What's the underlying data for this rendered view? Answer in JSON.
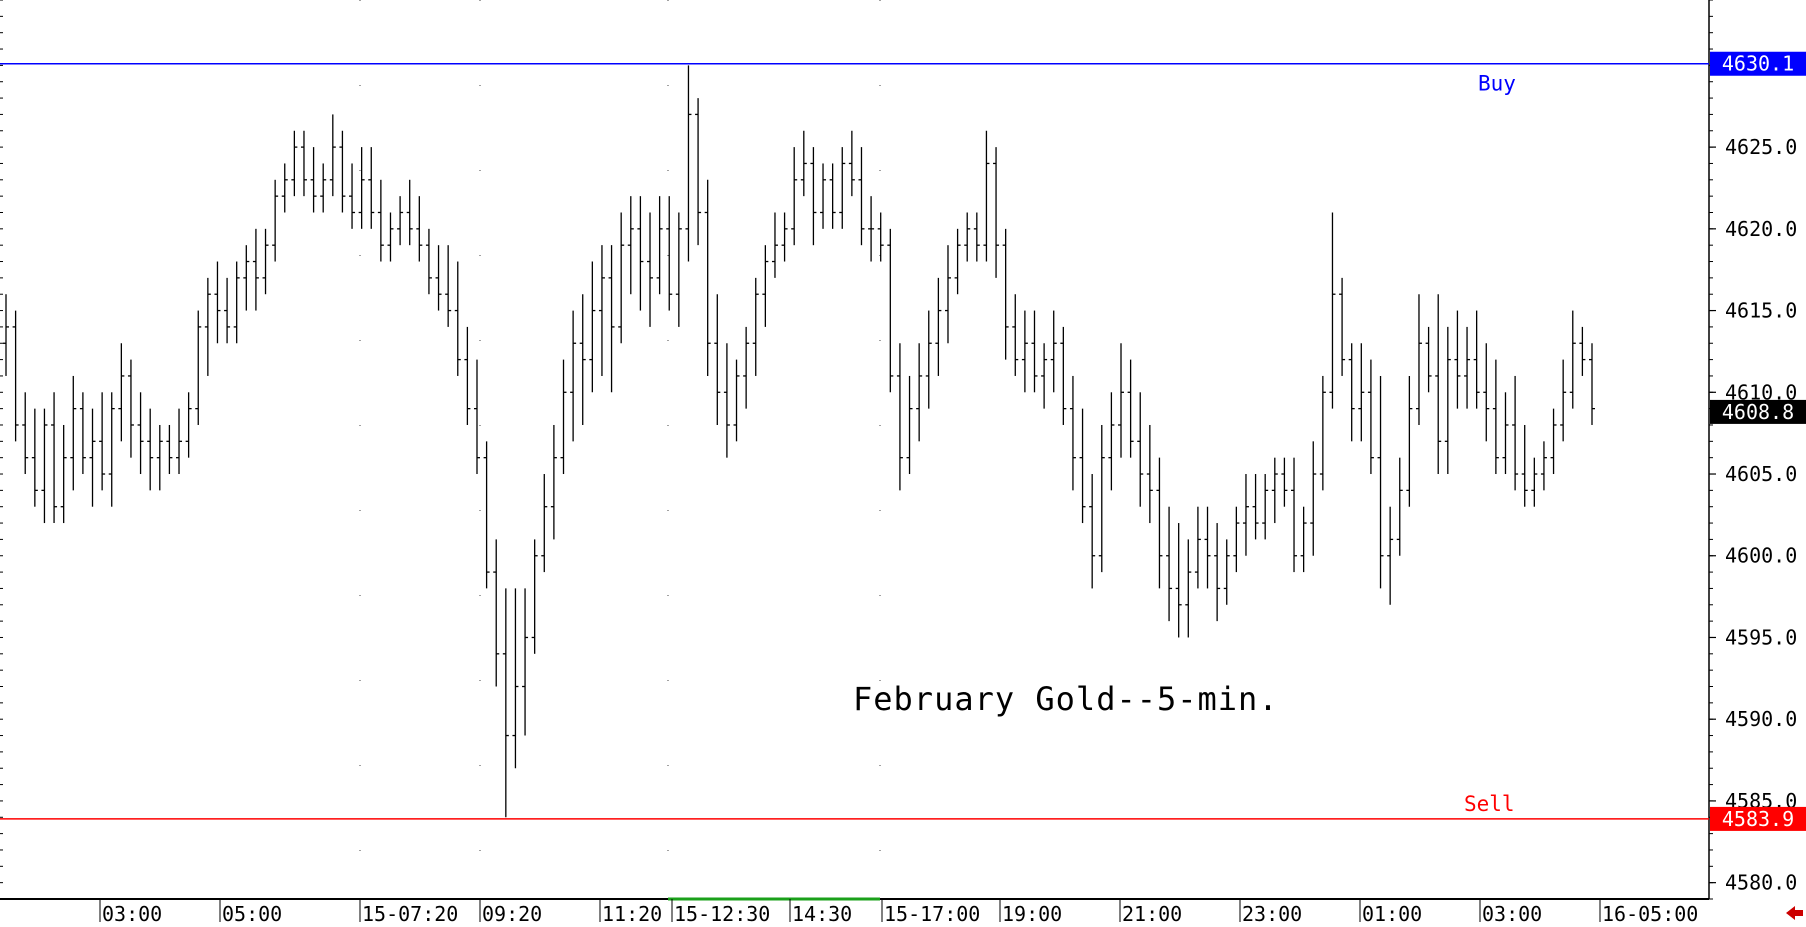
{
  "chart_data": {
    "type": "ohlc",
    "title": "February Gold--5-min.",
    "ylim": [
      4579,
      4634
    ],
    "y_ticks": [
      4580.0,
      4585.0,
      4590.0,
      4595.0,
      4600.0,
      4605.0,
      4610.0,
      4615.0,
      4620.0,
      4625.0
    ],
    "y_tick_labels": [
      "4580.0",
      "4585.0",
      "4590.0",
      "4595.0",
      "4600.0",
      "4605.0",
      "4610.0",
      "4615.0",
      "4620.0",
      "4625.0"
    ],
    "x_labels": [
      "03:00",
      "05:00",
      "15-07:20",
      "09:20",
      "11:20",
      "15-12:30",
      "14:30",
      "15-17:00",
      "19:00",
      "21:00",
      "23:00",
      "01:00",
      "03:00",
      "16-05:00"
    ],
    "buy_level": {
      "label": "Buy",
      "value": 4630.1,
      "value_label": "4630.1",
      "color": "#0000ff"
    },
    "sell_level": {
      "label": "Sell",
      "value": 4583.9,
      "value_label": "4583.9",
      "color": "#ff0000"
    },
    "last_price": {
      "value": 4608.8,
      "value_label": "4608.8",
      "color": "#000000"
    },
    "bar_color": "#000000",
    "grid": "dotted vertical separators",
    "ohlc": [
      [
        4613,
        4616,
        4611,
        4614
      ],
      [
        4614,
        4615,
        4607,
        4608
      ],
      [
        4608,
        4610,
        4605,
        4606
      ],
      [
        4606,
        4609,
        4603,
        4604
      ],
      [
        4604,
        4609,
        4602,
        4608
      ],
      [
        4608,
        4610,
        4602,
        4603
      ],
      [
        4603,
        4608,
        4602,
        4606
      ],
      [
        4606,
        4611,
        4604,
        4609
      ],
      [
        4609,
        4610,
        4605,
        4606
      ],
      [
        4606,
        4609,
        4603,
        4607
      ],
      [
        4607,
        4610,
        4604,
        4605
      ],
      [
        4605,
        4610,
        4603,
        4609
      ],
      [
        4609,
        4613,
        4607,
        4611
      ],
      [
        4611,
        4612,
        4606,
        4608
      ],
      [
        4608,
        4610,
        4605,
        4607
      ],
      [
        4607,
        4609,
        4604,
        4606
      ],
      [
        4606,
        4608,
        4604,
        4607
      ],
      [
        4607,
        4608,
        4605,
        4606
      ],
      [
        4606,
        4609,
        4605,
        4607
      ],
      [
        4607,
        4610,
        4606,
        4609
      ],
      [
        4609,
        4615,
        4608,
        4614
      ],
      [
        4614,
        4617,
        4611,
        4616
      ],
      [
        4616,
        4618,
        4613,
        4615
      ],
      [
        4615,
        4617,
        4613,
        4614
      ],
      [
        4614,
        4618,
        4613,
        4617
      ],
      [
        4617,
        4619,
        4615,
        4618
      ],
      [
        4618,
        4620,
        4615,
        4617
      ],
      [
        4617,
        4620,
        4616,
        4619
      ],
      [
        4619,
        4623,
        4618,
        4622
      ],
      [
        4622,
        4624,
        4621,
        4623
      ],
      [
        4623,
        4626,
        4622,
        4625
      ],
      [
        4625,
        4626,
        4622,
        4623
      ],
      [
        4623,
        4625,
        4621,
        4622
      ],
      [
        4622,
        4624,
        4621,
        4623
      ],
      [
        4623,
        4627,
        4622,
        4625
      ],
      [
        4625,
        4626,
        4621,
        4622
      ],
      [
        4622,
        4624,
        4620,
        4621
      ],
      [
        4621,
        4625,
        4620,
        4623
      ],
      [
        4623,
        4625,
        4620,
        4621
      ],
      [
        4621,
        4623,
        4618,
        4619
      ],
      [
        4619,
        4621,
        4618,
        4620
      ],
      [
        4620,
        4622,
        4619,
        4621
      ],
      [
        4621,
        4623,
        4619,
        4620
      ],
      [
        4620,
        4622,
        4618,
        4619
      ],
      [
        4619,
        4620,
        4616,
        4617
      ],
      [
        4617,
        4619,
        4615,
        4616
      ],
      [
        4616,
        4619,
        4614,
        4615
      ],
      [
        4615,
        4618,
        4611,
        4612
      ],
      [
        4612,
        4614,
        4608,
        4609
      ],
      [
        4609,
        4612,
        4605,
        4606
      ],
      [
        4606,
        4607,
        4598,
        4599
      ],
      [
        4599,
        4601,
        4592,
        4594
      ],
      [
        4594,
        4598,
        4584,
        4589
      ],
      [
        4589,
        4598,
        4587,
        4592
      ],
      [
        4592,
        4598,
        4589,
        4595
      ],
      [
        4595,
        4601,
        4594,
        4600
      ],
      [
        4600,
        4605,
        4599,
        4603
      ],
      [
        4603,
        4608,
        4601,
        4606
      ],
      [
        4606,
        4612,
        4605,
        4610
      ],
      [
        4610,
        4615,
        4607,
        4613
      ],
      [
        4613,
        4616,
        4608,
        4612
      ],
      [
        4612,
        4618,
        4610,
        4615
      ],
      [
        4615,
        4619,
        4611,
        4617
      ],
      [
        4617,
        4619,
        4610,
        4614
      ],
      [
        4614,
        4621,
        4613,
        4619
      ],
      [
        4619,
        4622,
        4616,
        4620
      ],
      [
        4620,
        4622,
        4615,
        4618
      ],
      [
        4618,
        4621,
        4614,
        4617
      ],
      [
        4617,
        4622,
        4616,
        4620
      ],
      [
        4620,
        4622,
        4615,
        4616
      ],
      [
        4616,
        4621,
        4614,
        4620
      ],
      [
        4620,
        4630,
        4618,
        4627
      ],
      [
        4627,
        4628,
        4619,
        4621
      ],
      [
        4621,
        4623,
        4611,
        4613
      ],
      [
        4613,
        4616,
        4608,
        4610
      ],
      [
        4610,
        4613,
        4606,
        4608
      ],
      [
        4608,
        4612,
        4607,
        4611
      ],
      [
        4611,
        4614,
        4609,
        4613
      ],
      [
        4613,
        4617,
        4611,
        4616
      ],
      [
        4616,
        4619,
        4614,
        4618
      ],
      [
        4618,
        4621,
        4617,
        4619
      ],
      [
        4619,
        4621,
        4618,
        4620
      ],
      [
        4620,
        4625,
        4619,
        4623
      ],
      [
        4623,
        4626,
        4622,
        4624
      ],
      [
        4624,
        4625,
        4619,
        4621
      ],
      [
        4621,
        4624,
        4620,
        4623
      ],
      [
        4623,
        4624,
        4620,
        4621
      ],
      [
        4621,
        4625,
        4620,
        4624
      ],
      [
        4624,
        4626,
        4622,
        4623
      ],
      [
        4623,
        4625,
        4619,
        4620
      ],
      [
        4620,
        4622,
        4618,
        4620
      ],
      [
        4620,
        4621,
        4618,
        4619
      ],
      [
        4619,
        4620,
        4610,
        4611
      ],
      [
        4611,
        4613,
        4604,
        4606
      ],
      [
        4606,
        4611,
        4605,
        4609
      ],
      [
        4609,
        4613,
        4607,
        4611
      ],
      [
        4611,
        4615,
        4609,
        4613
      ],
      [
        4613,
        4617,
        4611,
        4615
      ],
      [
        4615,
        4619,
        4613,
        4617
      ],
      [
        4617,
        4620,
        4616,
        4619
      ],
      [
        4619,
        4621,
        4618,
        4620
      ],
      [
        4620,
        4621,
        4618,
        4619
      ],
      [
        4619,
        4626,
        4618,
        4624
      ],
      [
        4624,
        4625,
        4617,
        4619
      ],
      [
        4619,
        4620,
        4612,
        4614
      ],
      [
        4614,
        4616,
        4611,
        4612
      ],
      [
        4612,
        4615,
        4610,
        4613
      ],
      [
        4613,
        4615,
        4610,
        4611
      ],
      [
        4611,
        4613,
        4609,
        4612
      ],
      [
        4612,
        4615,
        4610,
        4613
      ],
      [
        4613,
        4614,
        4608,
        4609
      ],
      [
        4609,
        4611,
        4604,
        4606
      ],
      [
        4606,
        4609,
        4602,
        4603
      ],
      [
        4603,
        4605,
        4598,
        4600
      ],
      [
        4600,
        4608,
        4599,
        4606
      ],
      [
        4606,
        4610,
        4604,
        4608
      ],
      [
        4608,
        4613,
        4606,
        4610
      ],
      [
        4610,
        4612,
        4606,
        4607
      ],
      [
        4607,
        4610,
        4603,
        4605
      ],
      [
        4605,
        4608,
        4602,
        4604
      ],
      [
        4604,
        4606,
        4598,
        4600
      ],
      [
        4600,
        4603,
        4596,
        4598
      ],
      [
        4598,
        4602,
        4595,
        4597
      ],
      [
        4597,
        4601,
        4595,
        4599
      ],
      [
        4599,
        4603,
        4598,
        4601
      ],
      [
        4601,
        4603,
        4598,
        4600
      ],
      [
        4600,
        4602,
        4596,
        4598
      ],
      [
        4598,
        4601,
        4597,
        4600
      ],
      [
        4600,
        4603,
        4599,
        4602
      ],
      [
        4602,
        4605,
        4600,
        4603
      ],
      [
        4603,
        4605,
        4601,
        4602
      ],
      [
        4602,
        4605,
        4601,
        4604
      ],
      [
        4604,
        4606,
        4602,
        4605
      ],
      [
        4605,
        4606,
        4603,
        4604
      ],
      [
        4604,
        4606,
        4599,
        4600
      ],
      [
        4600,
        4603,
        4599,
        4602
      ],
      [
        4602,
        4607,
        4600,
        4605
      ],
      [
        4605,
        4611,
        4604,
        4610
      ],
      [
        4610,
        4621,
        4609,
        4616
      ],
      [
        4616,
        4617,
        4611,
        4612
      ],
      [
        4612,
        4613,
        4607,
        4609
      ],
      [
        4609,
        4613,
        4607,
        4610
      ],
      [
        4610,
        4612,
        4605,
        4606
      ],
      [
        4606,
        4611,
        4598,
        4600
      ],
      [
        4600,
        4603,
        4597,
        4601
      ],
      [
        4601,
        4606,
        4600,
        4604
      ],
      [
        4604,
        4611,
        4603,
        4609
      ],
      [
        4609,
        4616,
        4608,
        4613
      ],
      [
        4613,
        4614,
        4610,
        4611
      ],
      [
        4611,
        4616,
        4605,
        4607
      ],
      [
        4607,
        4614,
        4605,
        4612
      ],
      [
        4612,
        4615,
        4609,
        4611
      ],
      [
        4611,
        4614,
        4609,
        4612
      ],
      [
        4612,
        4615,
        4609,
        4610
      ],
      [
        4610,
        4613,
        4607,
        4609
      ],
      [
        4609,
        4612,
        4605,
        4606
      ],
      [
        4606,
        4610,
        4605,
        4608
      ],
      [
        4608,
        4611,
        4604,
        4605
      ],
      [
        4605,
        4608,
        4603,
        4604
      ],
      [
        4604,
        4606,
        4603,
        4605
      ],
      [
        4605,
        4607,
        4604,
        4606
      ],
      [
        4606,
        4609,
        4605,
        4608
      ],
      [
        4608,
        4612,
        4607,
        4610
      ],
      [
        4610,
        4615,
        4609,
        4613
      ],
      [
        4613,
        4614,
        4611,
        4612
      ],
      [
        4612,
        4613,
        4608,
        4609
      ]
    ]
  }
}
